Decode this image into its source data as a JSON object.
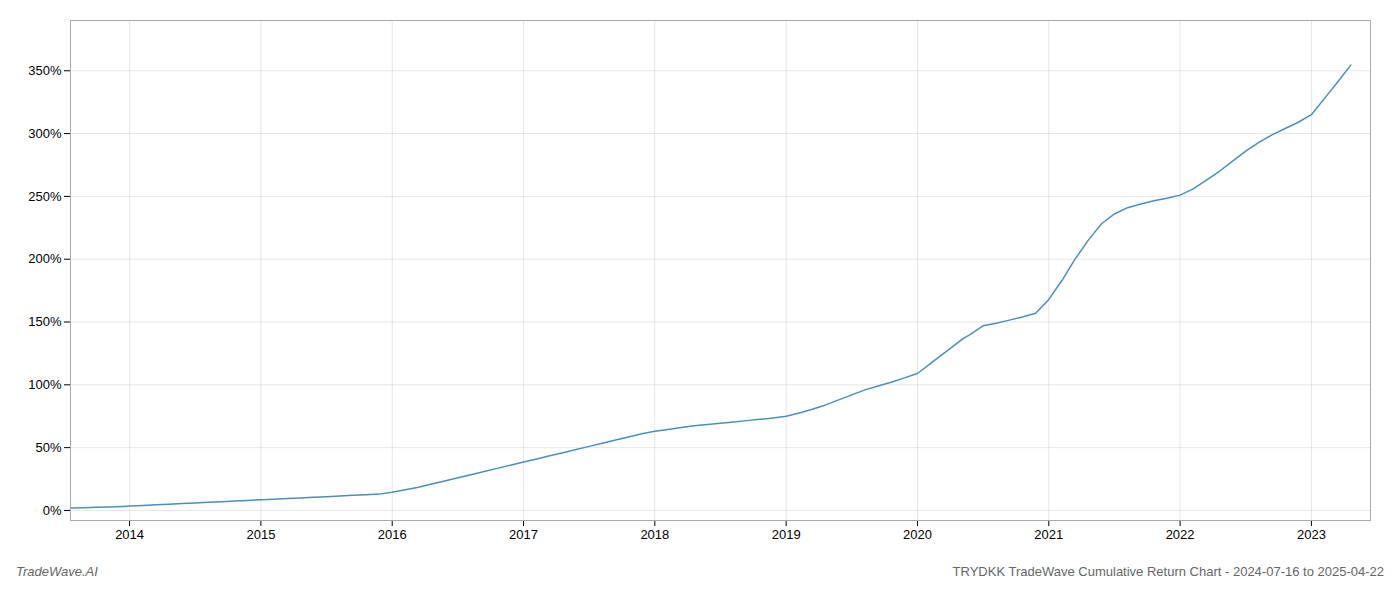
{
  "chart_data": {
    "type": "line",
    "title": "TRYDKK TradeWave Cumulative Return Chart - 2024-07-16 to 2025-04-22",
    "annotations": [
      "TradeWave.AI"
    ],
    "color": "#4a90b8",
    "grid": true,
    "xlim": [
      2013.55,
      2023.45
    ],
    "xticks": [
      2014,
      2015,
      2016,
      2017,
      2018,
      2019,
      2020,
      2021,
      2022,
      2023
    ],
    "ylim": [
      -8,
      390
    ],
    "yticks": [
      {
        "value": 0,
        "label": "0%"
      },
      {
        "value": 50,
        "label": "50%"
      },
      {
        "value": 100,
        "label": "100%"
      },
      {
        "value": 150,
        "label": "150%"
      },
      {
        "value": 200,
        "label": "200%"
      },
      {
        "value": 250,
        "label": "250%"
      },
      {
        "value": 300,
        "label": "300%"
      },
      {
        "value": 350,
        "label": "350%"
      }
    ],
    "x": [
      2013.55,
      2013.65,
      2013.75,
      2013.85,
      2013.95,
      2014.0,
      2014.1,
      2014.2,
      2014.3,
      2014.4,
      2014.5,
      2014.6,
      2014.7,
      2014.8,
      2014.9,
      2015.0,
      2015.1,
      2015.2,
      2015.3,
      2015.4,
      2015.5,
      2015.6,
      2015.7,
      2015.8,
      2015.9,
      2016.0,
      2016.1,
      2016.2,
      2016.3,
      2016.4,
      2016.5,
      2016.6,
      2016.7,
      2016.8,
      2016.9,
      2017.0,
      2017.1,
      2017.2,
      2017.3,
      2017.4,
      2017.5,
      2017.6,
      2017.7,
      2017.8,
      2017.9,
      2018.0,
      2018.1,
      2018.2,
      2018.3,
      2018.4,
      2018.5,
      2018.6,
      2018.7,
      2018.8,
      2018.9,
      2019.0,
      2019.1,
      2019.2,
      2019.3,
      2019.4,
      2019.5,
      2019.6,
      2019.7,
      2019.8,
      2019.9,
      2020.0,
      2020.05,
      2020.1,
      2020.15,
      2020.2,
      2020.25,
      2020.3,
      2020.35,
      2020.4,
      2020.45,
      2020.5,
      2020.6,
      2020.7,
      2020.8,
      2020.9,
      2021.0,
      2021.1,
      2021.2,
      2021.3,
      2021.4,
      2021.5,
      2021.6,
      2021.7,
      2021.8,
      2021.9,
      2022.0,
      2022.1,
      2022.2,
      2022.3,
      2022.4,
      2022.5,
      2022.6,
      2022.7,
      2022.8,
      2022.9,
      2023.0,
      2023.1,
      2023.2,
      2023.3
    ],
    "values": [
      2.0,
      2.2,
      2.5,
      2.8,
      3.2,
      3.5,
      4.0,
      4.5,
      5.0,
      5.5,
      6.0,
      6.5,
      7.0,
      7.5,
      8.0,
      8.5,
      9.0,
      9.5,
      10.0,
      10.5,
      11.0,
      11.5,
      12.0,
      12.5,
      13.0,
      14.5,
      16.5,
      18.5,
      21.0,
      23.5,
      26.0,
      28.5,
      31.0,
      33.5,
      36.0,
      38.5,
      41.0,
      43.5,
      46.0,
      48.5,
      51.0,
      53.5,
      56.0,
      58.5,
      61.0,
      63.0,
      64.5,
      66.0,
      67.5,
      68.5,
      69.5,
      70.5,
      71.5,
      72.5,
      73.5,
      75.0,
      77.5,
      80.5,
      84.0,
      88.0,
      92.0,
      96.0,
      99.0,
      102.0,
      105.5,
      109.0,
      113.0,
      117.0,
      121.0,
      125.0,
      129.0,
      133.0,
      137.0,
      140.0,
      143.5,
      147.0,
      149.0,
      151.5,
      154.0,
      157.0,
      168.0,
      183.0,
      200.0,
      215.0,
      228.0,
      236.0,
      241.0,
      244.0,
      246.5,
      248.5,
      251.0,
      256.0,
      263.0,
      270.0,
      278.0,
      286.0,
      293.0,
      299.0,
      304.0,
      309.0,
      315.0,
      328.0,
      341.0,
      354.5
    ]
  }
}
